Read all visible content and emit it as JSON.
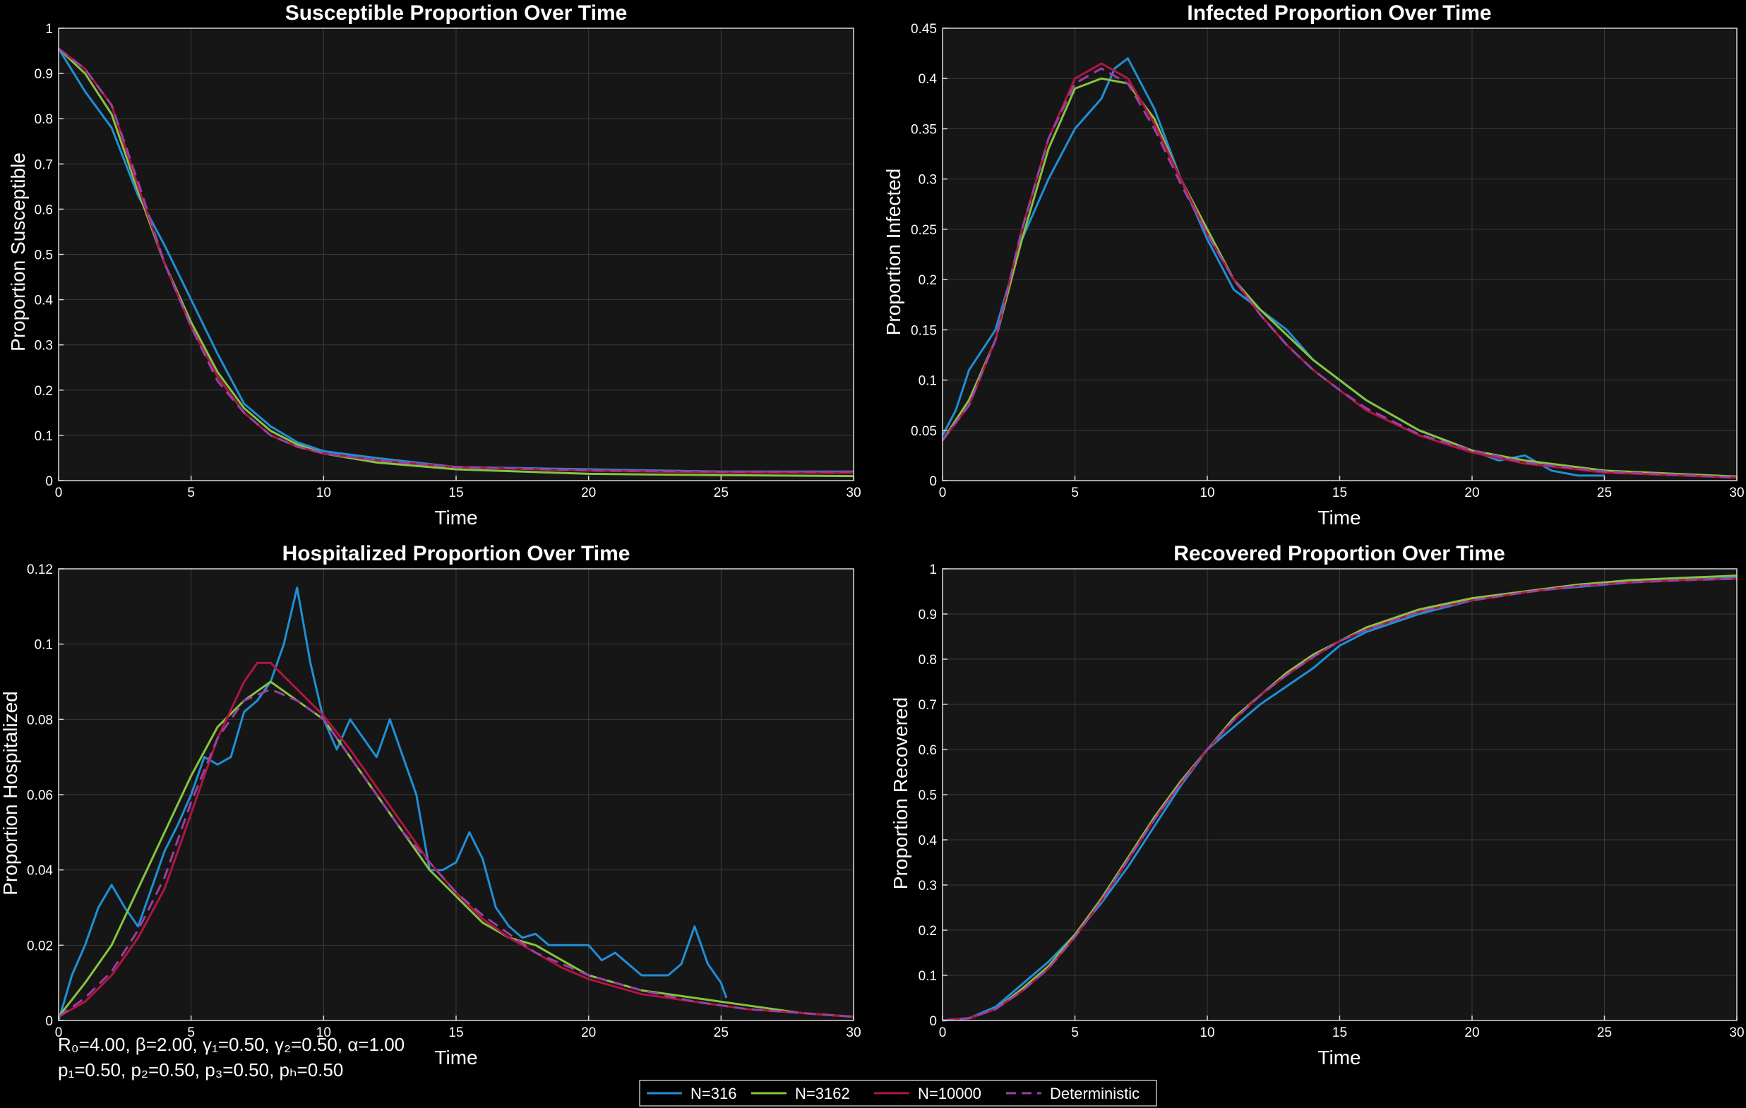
{
  "colors": {
    "background": "#000000",
    "axes_bg": "#161616",
    "grid": "#3a3a3a",
    "N=316": "#1f8fd6",
    "N=3162": "#86c440",
    "N=10000": "#b0163f",
    "Deterministic": "#9a3fa3"
  },
  "legend": [
    "N=316",
    "N=3162",
    "N=10000",
    "Deterministic"
  ],
  "params": {
    "line1": "R₀=4.00,  β=2.00,  γ₁=0.50,  γ₂=0.50,  α=1.00",
    "line2": "p₁=0.50,  p₂=0.50,  p₃=0.50,  pₕ=0.50"
  },
  "chart_data": [
    {
      "type": "line",
      "title": "Susceptible Proportion Over Time",
      "xlabel": "Time",
      "ylabel": "Proportion Susceptible",
      "xlim": [
        0,
        30
      ],
      "ylim": [
        0,
        1
      ],
      "xticks": [
        0,
        5,
        10,
        15,
        20,
        25,
        30
      ],
      "yticks": [
        0,
        0.1,
        0.2,
        0.3,
        0.4,
        0.5,
        0.6,
        0.7,
        0.8,
        0.9,
        1
      ],
      "grid": true,
      "series": [
        {
          "name": "N=316",
          "style": "solid",
          "x": [
            0,
            1,
            2,
            3,
            4,
            5,
            6,
            7,
            8,
            9,
            10,
            12,
            15,
            20,
            25,
            30
          ],
          "y": [
            0.955,
            0.86,
            0.78,
            0.63,
            0.52,
            0.4,
            0.28,
            0.17,
            0.12,
            0.085,
            0.065,
            0.05,
            0.03,
            0.025,
            0.02,
            0.02
          ]
        },
        {
          "name": "N=3162",
          "style": "solid",
          "x": [
            0,
            1,
            2,
            3,
            4,
            5,
            6,
            7,
            8,
            9,
            10,
            12,
            15,
            20,
            25,
            30
          ],
          "y": [
            0.955,
            0.9,
            0.81,
            0.64,
            0.48,
            0.35,
            0.24,
            0.16,
            0.11,
            0.08,
            0.06,
            0.04,
            0.025,
            0.015,
            0.012,
            0.01
          ]
        },
        {
          "name": "N=10000",
          "style": "solid",
          "x": [
            0,
            1,
            2,
            3,
            4,
            5,
            6,
            7,
            8,
            9,
            10,
            12,
            15,
            20,
            25,
            30
          ],
          "y": [
            0.955,
            0.91,
            0.83,
            0.65,
            0.48,
            0.34,
            0.23,
            0.15,
            0.1,
            0.075,
            0.06,
            0.045,
            0.03,
            0.022,
            0.018,
            0.017
          ]
        },
        {
          "name": "Deterministic",
          "style": "dashed",
          "x": [
            0,
            1,
            2,
            3,
            4,
            5,
            6,
            7,
            8,
            9,
            10,
            12,
            15,
            20,
            25,
            30
          ],
          "y": [
            0.955,
            0.91,
            0.83,
            0.66,
            0.48,
            0.34,
            0.22,
            0.15,
            0.1,
            0.075,
            0.06,
            0.045,
            0.03,
            0.023,
            0.02,
            0.02
          ]
        }
      ]
    },
    {
      "type": "line",
      "title": "Infected Proportion Over Time",
      "xlabel": "Time",
      "ylabel": "Proportion Infected",
      "xlim": [
        0,
        30
      ],
      "ylim": [
        0,
        0.45
      ],
      "xticks": [
        0,
        5,
        10,
        15,
        20,
        25,
        30
      ],
      "yticks": [
        0,
        0.05,
        0.1,
        0.15,
        0.2,
        0.25,
        0.3,
        0.35,
        0.4,
        0.45
      ],
      "grid": true,
      "series": [
        {
          "name": "N=316",
          "style": "solid",
          "x": [
            0,
            0.5,
            1,
            1.5,
            2,
            3,
            4,
            5,
            6,
            6.5,
            7,
            8,
            9,
            10,
            11,
            12,
            13,
            14,
            15,
            16,
            17,
            18,
            19,
            20,
            21,
            22,
            23,
            24,
            25
          ],
          "y": [
            0.045,
            0.07,
            0.11,
            0.13,
            0.15,
            0.24,
            0.3,
            0.35,
            0.38,
            0.41,
            0.42,
            0.37,
            0.3,
            0.24,
            0.19,
            0.17,
            0.15,
            0.12,
            0.1,
            0.08,
            0.065,
            0.05,
            0.04,
            0.03,
            0.02,
            0.025,
            0.01,
            0.005,
            0.005
          ]
        },
        {
          "name": "N=3162",
          "style": "solid",
          "x": [
            0,
            1,
            2,
            3,
            4,
            5,
            6,
            7,
            8,
            9,
            10,
            11,
            12,
            13,
            14,
            15,
            16,
            18,
            20,
            22,
            25,
            30
          ],
          "y": [
            0.04,
            0.08,
            0.14,
            0.24,
            0.33,
            0.39,
            0.4,
            0.395,
            0.36,
            0.3,
            0.25,
            0.2,
            0.17,
            0.145,
            0.12,
            0.1,
            0.08,
            0.05,
            0.03,
            0.02,
            0.01,
            0.004
          ]
        },
        {
          "name": "N=10000",
          "style": "solid",
          "x": [
            0,
            1,
            2,
            3,
            4,
            5,
            6,
            7,
            8,
            9,
            10,
            11,
            12,
            13,
            14,
            15,
            16,
            18,
            20,
            22,
            25,
            30
          ],
          "y": [
            0.04,
            0.075,
            0.14,
            0.25,
            0.34,
            0.4,
            0.415,
            0.4,
            0.355,
            0.3,
            0.245,
            0.2,
            0.165,
            0.135,
            0.11,
            0.09,
            0.07,
            0.045,
            0.028,
            0.017,
            0.008,
            0.003
          ]
        },
        {
          "name": "Deterministic",
          "style": "dashed",
          "x": [
            0,
            1,
            2,
            3,
            4,
            5,
            6,
            7,
            8,
            9,
            10,
            11,
            12,
            13,
            14,
            15,
            16,
            18,
            20,
            22,
            25,
            30
          ],
          "y": [
            0.04,
            0.075,
            0.14,
            0.25,
            0.34,
            0.395,
            0.41,
            0.395,
            0.35,
            0.295,
            0.245,
            0.2,
            0.165,
            0.135,
            0.11,
            0.09,
            0.072,
            0.046,
            0.03,
            0.018,
            0.009,
            0.003
          ]
        }
      ]
    },
    {
      "type": "line",
      "title": "Hospitalized Proportion Over Time",
      "xlabel": "Time",
      "ylabel": "Proportion Hospitalized",
      "xlim": [
        0,
        30
      ],
      "ylim": [
        0,
        0.12
      ],
      "xticks": [
        0,
        5,
        10,
        15,
        20,
        25,
        30
      ],
      "yticks": [
        0,
        0.02,
        0.04,
        0.06,
        0.08,
        0.1,
        0.12
      ],
      "grid": true,
      "series": [
        {
          "name": "N=316",
          "style": "solid",
          "x": [
            0,
            0.5,
            1,
            1.5,
            2,
            2.5,
            3,
            3.5,
            4,
            4.5,
            5,
            5.5,
            6,
            6.5,
            7,
            7.5,
            8,
            8.5,
            9,
            9.5,
            10,
            10.5,
            11,
            11.5,
            12,
            12.5,
            13,
            13.5,
            14,
            14.5,
            15,
            15.5,
            16,
            16.5,
            17,
            17.5,
            18,
            18.5,
            19,
            19.5,
            20,
            20.5,
            21,
            21.5,
            22,
            22.5,
            23,
            23.5,
            24,
            24.5,
            25,
            25.2
          ],
          "y": [
            0,
            0.012,
            0.02,
            0.03,
            0.036,
            0.03,
            0.025,
            0.035,
            0.045,
            0.052,
            0.06,
            0.07,
            0.068,
            0.07,
            0.082,
            0.085,
            0.09,
            0.1,
            0.115,
            0.095,
            0.08,
            0.072,
            0.08,
            0.075,
            0.07,
            0.08,
            0.07,
            0.06,
            0.04,
            0.04,
            0.042,
            0.05,
            0.043,
            0.03,
            0.025,
            0.022,
            0.023,
            0.02,
            0.02,
            0.02,
            0.02,
            0.016,
            0.018,
            0.015,
            0.012,
            0.012,
            0.012,
            0.015,
            0.025,
            0.015,
            0.01,
            0.006
          ]
        },
        {
          "name": "N=3162",
          "style": "solid",
          "x": [
            0,
            1,
            2,
            3,
            4,
            5,
            6,
            7,
            8,
            9,
            10,
            11,
            12,
            13,
            14,
            15,
            16,
            17,
            18,
            19,
            20,
            22,
            24,
            26,
            28,
            30
          ],
          "y": [
            0.001,
            0.01,
            0.02,
            0.035,
            0.05,
            0.065,
            0.078,
            0.085,
            0.09,
            0.085,
            0.08,
            0.07,
            0.06,
            0.05,
            0.04,
            0.033,
            0.026,
            0.022,
            0.02,
            0.016,
            0.012,
            0.008,
            0.006,
            0.004,
            0.002,
            0.001
          ]
        },
        {
          "name": "N=10000",
          "style": "solid",
          "x": [
            0,
            1,
            2,
            3,
            4,
            5,
            6,
            7,
            7.5,
            8,
            9,
            10,
            11,
            12,
            13,
            14,
            15,
            16,
            17,
            18,
            19,
            20,
            22,
            24,
            26,
            28,
            30
          ],
          "y": [
            0.001,
            0.005,
            0.012,
            0.022,
            0.035,
            0.055,
            0.075,
            0.09,
            0.095,
            0.095,
            0.088,
            0.081,
            0.072,
            0.062,
            0.052,
            0.042,
            0.034,
            0.027,
            0.022,
            0.018,
            0.014,
            0.011,
            0.007,
            0.005,
            0.003,
            0.002,
            0.001
          ]
        },
        {
          "name": "Deterministic",
          "style": "dashed",
          "x": [
            0,
            1,
            2,
            3,
            4,
            5,
            6,
            7,
            8,
            9,
            10,
            11,
            12,
            13,
            14,
            15,
            16,
            18,
            20,
            22,
            24,
            26,
            28,
            30
          ],
          "y": [
            0.001,
            0.006,
            0.013,
            0.024,
            0.038,
            0.058,
            0.075,
            0.085,
            0.088,
            0.085,
            0.08,
            0.07,
            0.06,
            0.05,
            0.042,
            0.034,
            0.028,
            0.018,
            0.012,
            0.008,
            0.005,
            0.003,
            0.002,
            0.001
          ]
        }
      ]
    },
    {
      "type": "line",
      "title": "Recovered Proportion Over Time",
      "xlabel": "Time",
      "ylabel": "Proportion Recovered",
      "xlim": [
        0,
        30
      ],
      "ylim": [
        0,
        1
      ],
      "xticks": [
        0,
        5,
        10,
        15,
        20,
        25,
        30
      ],
      "yticks": [
        0,
        0.1,
        0.2,
        0.3,
        0.4,
        0.5,
        0.6,
        0.7,
        0.8,
        0.9,
        1
      ],
      "grid": true,
      "series": [
        {
          "name": "N=316",
          "style": "solid",
          "x": [
            0,
            1,
            2,
            3,
            4,
            5,
            6,
            7,
            8,
            9,
            10,
            11,
            12,
            13,
            14,
            15,
            16,
            18,
            20,
            22,
            24,
            26,
            28,
            30
          ],
          "y": [
            0,
            0.005,
            0.03,
            0.08,
            0.13,
            0.19,
            0.26,
            0.34,
            0.43,
            0.52,
            0.6,
            0.65,
            0.7,
            0.74,
            0.78,
            0.83,
            0.86,
            0.9,
            0.93,
            0.95,
            0.96,
            0.97,
            0.975,
            0.98
          ]
        },
        {
          "name": "N=3162",
          "style": "solid",
          "x": [
            0,
            1,
            2,
            3,
            4,
            5,
            6,
            7,
            8,
            9,
            10,
            11,
            12,
            13,
            14,
            15,
            16,
            18,
            20,
            22,
            24,
            26,
            28,
            30
          ],
          "y": [
            0,
            0.005,
            0.025,
            0.07,
            0.12,
            0.19,
            0.27,
            0.36,
            0.45,
            0.53,
            0.6,
            0.67,
            0.72,
            0.77,
            0.81,
            0.84,
            0.87,
            0.91,
            0.935,
            0.95,
            0.965,
            0.975,
            0.98,
            0.985
          ]
        },
        {
          "name": "N=10000",
          "style": "solid",
          "x": [
            0,
            1,
            2,
            3,
            4,
            5,
            6,
            7,
            8,
            9,
            10,
            11,
            12,
            13,
            14,
            15,
            16,
            18,
            20,
            22,
            24,
            26,
            28,
            30
          ],
          "y": [
            0,
            0.005,
            0.025,
            0.065,
            0.115,
            0.185,
            0.265,
            0.355,
            0.445,
            0.525,
            0.6,
            0.665,
            0.72,
            0.765,
            0.805,
            0.84,
            0.865,
            0.905,
            0.93,
            0.948,
            0.962,
            0.97,
            0.975,
            0.978
          ]
        },
        {
          "name": "Deterministic",
          "style": "dashed",
          "x": [
            0,
            1,
            2,
            3,
            4,
            5,
            6,
            7,
            8,
            9,
            10,
            11,
            12,
            13,
            14,
            15,
            16,
            18,
            20,
            22,
            24,
            26,
            28,
            30
          ],
          "y": [
            0,
            0.005,
            0.025,
            0.065,
            0.115,
            0.185,
            0.265,
            0.355,
            0.445,
            0.525,
            0.6,
            0.665,
            0.72,
            0.765,
            0.805,
            0.84,
            0.865,
            0.905,
            0.93,
            0.948,
            0.962,
            0.97,
            0.975,
            0.978
          ]
        }
      ]
    }
  ]
}
